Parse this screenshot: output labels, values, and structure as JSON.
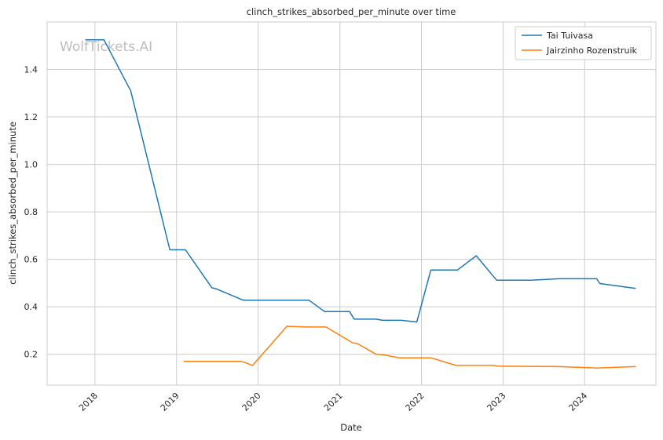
{
  "chart_data": {
    "type": "line",
    "title": "clinch_strikes_absorbed_per_minute over time",
    "xlabel": "Date",
    "ylabel": "clinch_strikes_absorbed_per_minute",
    "watermark": "WolfTickets.AI",
    "xlim": [
      "2017-06-01",
      "2024-11-15"
    ],
    "ylim": [
      0.07,
      1.6
    ],
    "x_ticks": [
      "2018",
      "2019",
      "2020",
      "2021",
      "2022",
      "2023",
      "2024"
    ],
    "y_ticks": [
      "0.2",
      "0.4",
      "0.6",
      "0.8",
      "1.0",
      "1.2",
      "1.4"
    ],
    "grid": true,
    "legend_position": "top-right",
    "series": [
      {
        "name": "Tai Tuivasa",
        "color": "#1f77b4",
        "points": [
          [
            "2017-11-19",
            1.525
          ],
          [
            "2018-02-10",
            1.525
          ],
          [
            "2018-06-10",
            1.31
          ],
          [
            "2018-12-02",
            0.64
          ],
          [
            "2019-02-10",
            0.64
          ],
          [
            "2019-06-08",
            0.48
          ],
          [
            "2019-06-29",
            0.475
          ],
          [
            "2019-10-26",
            0.428
          ],
          [
            "2020-08-15",
            0.428
          ],
          [
            "2020-10-24",
            0.38
          ],
          [
            "2021-02-13",
            0.38
          ],
          [
            "2021-03-06",
            0.348
          ],
          [
            "2021-06-12",
            0.348
          ],
          [
            "2021-07-10",
            0.343
          ],
          [
            "2021-10-02",
            0.343
          ],
          [
            "2021-12-11",
            0.336
          ],
          [
            "2022-02-12",
            0.555
          ],
          [
            "2022-06-11",
            0.555
          ],
          [
            "2022-09-03",
            0.615
          ],
          [
            "2022-12-03",
            0.512
          ],
          [
            "2023-05-06",
            0.512
          ],
          [
            "2023-09-09",
            0.518
          ],
          [
            "2024-02-24",
            0.518
          ],
          [
            "2024-03-09",
            0.498
          ],
          [
            "2024-08-17",
            0.477
          ]
        ]
      },
      {
        "name": "Jairzinho Rozenstruik",
        "color": "#ff7f0e",
        "points": [
          [
            "2019-02-02",
            0.17
          ],
          [
            "2019-10-12",
            0.17
          ],
          [
            "2019-11-02",
            0.166
          ],
          [
            "2019-12-07",
            0.153
          ],
          [
            "2020-05-09",
            0.318
          ],
          [
            "2020-08-01",
            0.315
          ],
          [
            "2020-10-31",
            0.315
          ],
          [
            "2021-02-27",
            0.248
          ],
          [
            "2021-03-20",
            0.245
          ],
          [
            "2021-06-12",
            0.2
          ],
          [
            "2021-07-10",
            0.198
          ],
          [
            "2021-09-25",
            0.185
          ],
          [
            "2022-02-12",
            0.185
          ],
          [
            "2022-06-04",
            0.153
          ],
          [
            "2022-11-26",
            0.153
          ],
          [
            "2022-12-03",
            0.15
          ],
          [
            "2023-09-02",
            0.148
          ],
          [
            "2024-03-02",
            0.142
          ],
          [
            "2024-08-17",
            0.148
          ]
        ]
      }
    ]
  }
}
